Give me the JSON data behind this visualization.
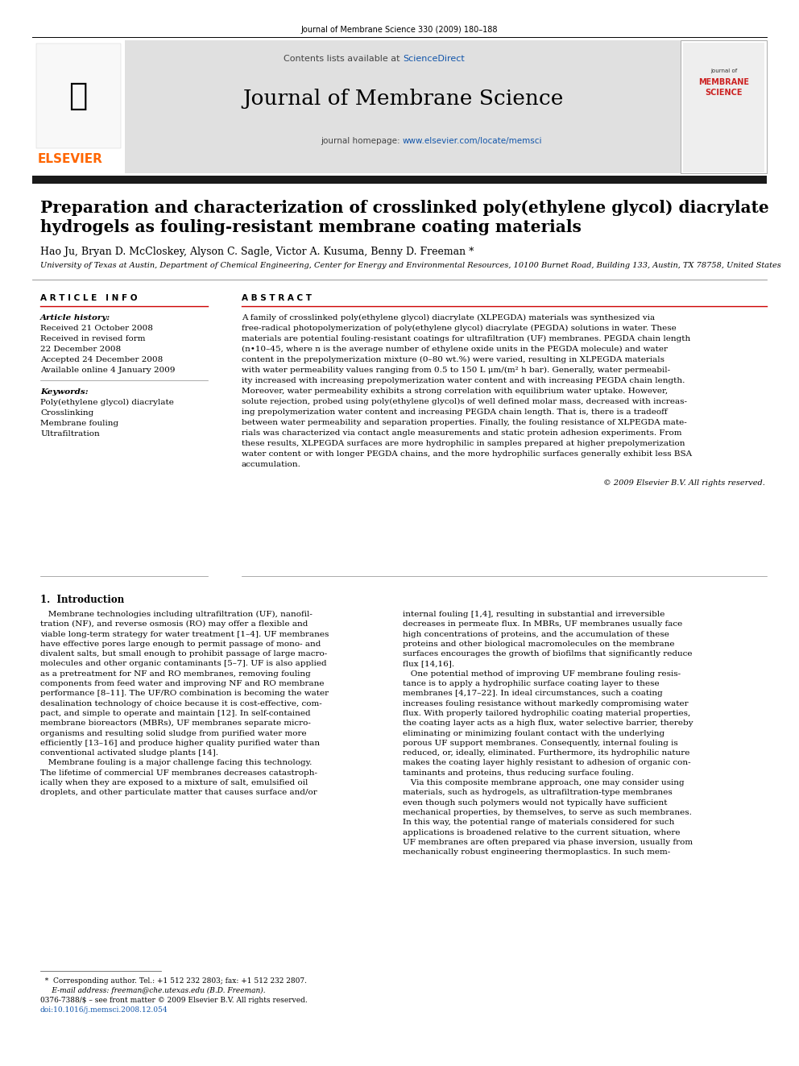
{
  "journal_header": "Journal of Membrane Science 330 (2009) 180–188",
  "contents_line": "Contents lists available at ",
  "sciencedirect": "ScienceDirect",
  "journal_name": "Journal of Membrane Science",
  "homepage_prefix": "journal homepage: ",
  "homepage_url": "www.elsevier.com/locate/memsci",
  "title_line1": "Preparation and characterization of crosslinked poly(ethylene glycol) diacrylate",
  "title_line2": "hydrogels as fouling-resistant membrane coating materials",
  "authors": "Hao Ju, Bryan D. McCloskey, Alyson C. Sagle, Victor A. Kusuma, Benny D. Freeman *",
  "affiliation": "University of Texas at Austin, Department of Chemical Engineering, Center for Energy and Environmental Resources, 10100 Burnet Road, Building 133, Austin, TX 78758, United States",
  "article_info_title": "A R T I C L E   I N F O",
  "history_label": "Article history:",
  "received1": "Received 21 October 2008",
  "received2": "Received in revised form",
  "received2b": "22 December 2008",
  "accepted": "Accepted 24 December 2008",
  "available": "Available online 4 January 2009",
  "keywords_label": "Keywords:",
  "kw1": "Poly(ethylene glycol) diacrylate",
  "kw2": "Crosslinking",
  "kw3": "Membrane fouling",
  "kw4": "Ultrafiltration",
  "abstract_title": "A B S T R A C T",
  "abstract_lines": [
    "A family of crosslinked poly(ethylene glycol) diacrylate (XLPEGDA) materials was synthesized via",
    "free-radical photopolymerization of poly(ethylene glycol) diacrylate (PEGDA) solutions in water. These",
    "materials are potential fouling-resistant coatings for ultrafiltration (UF) membranes. PEGDA chain length",
    "(n•10–45, where n is the average number of ethylene oxide units in the PEGDA molecule) and water",
    "content in the prepolymerization mixture (0–80 wt.%) were varied, resulting in XLPEGDA materials",
    "with water permeability values ranging from 0.5 to 150 L μm/(m² h bar). Generally, water permeabil-",
    "ity increased with increasing prepolymerization water content and with increasing PEGDA chain length.",
    "Moreover, water permeability exhibits a strong correlation with equilibrium water uptake. However,",
    "solute rejection, probed using poly(ethylene glycol)s of well defined molar mass, decreased with increas-",
    "ing prepolymerization water content and increasing PEGDA chain length. That is, there is a tradeoff",
    "between water permeability and separation properties. Finally, the fouling resistance of XLPEGDA mate-",
    "rials was characterized via contact angle measurements and static protein adhesion experiments. From",
    "these results, XLPEGDA surfaces are more hydrophilic in samples prepared at higher prepolymerization",
    "water content or with longer PEGDA chains, and the more hydrophilic surfaces generally exhibit less BSA",
    "accumulation."
  ],
  "copyright": "© 2009 Elsevier B.V. All rights reserved.",
  "intro_title": "1.  Introduction",
  "intro1_lines": [
    "   Membrane technologies including ultrafiltration (UF), nanofil-",
    "tration (NF), and reverse osmosis (RO) may offer a flexible and",
    "viable long-term strategy for water treatment [1–4]. UF membranes",
    "have effective pores large enough to permit passage of mono- and",
    "divalent salts, but small enough to prohibit passage of large macro-",
    "molecules and other organic contaminants [5–7]. UF is also applied",
    "as a pretreatment for NF and RO membranes, removing fouling",
    "components from feed water and improving NF and RO membrane",
    "performance [8–11]. The UF/RO combination is becoming the water",
    "desalination technology of choice because it is cost-effective, com-",
    "pact, and simple to operate and maintain [12]. In self-contained",
    "membrane bioreactors (MBRs), UF membranes separate micro-",
    "organisms and resulting solid sludge from purified water more",
    "efficiently [13–16] and produce higher quality purified water than",
    "conventional activated sludge plants [14].",
    "   Membrane fouling is a major challenge facing this technology.",
    "The lifetime of commercial UF membranes decreases catastroph-",
    "ically when they are exposed to a mixture of salt, emulsified oil",
    "droplets, and other particulate matter that causes surface and/or"
  ],
  "intro2_lines": [
    "internal fouling [1,4], resulting in substantial and irreversible",
    "decreases in permeate flux. In MBRs, UF membranes usually face",
    "high concentrations of proteins, and the accumulation of these",
    "proteins and other biological macromolecules on the membrane",
    "surfaces encourages the growth of biofilms that significantly reduce",
    "flux [14,16].",
    "   One potential method of improving UF membrane fouling resis-",
    "tance is to apply a hydrophilic surface coating layer to these",
    "membranes [4,17–22]. In ideal circumstances, such a coating",
    "increases fouling resistance without markedly compromising water",
    "flux. With properly tailored hydrophilic coating material properties,",
    "the coating layer acts as a high flux, water selective barrier, thereby",
    "eliminating or minimizing foulant contact with the underlying",
    "porous UF support membranes. Consequently, internal fouling is",
    "reduced, or, ideally, eliminated. Furthermore, its hydrophilic nature",
    "makes the coating layer highly resistant to adhesion of organic con-",
    "taminants and proteins, thus reducing surface fouling.",
    "   Via this composite membrane approach, one may consider using",
    "materials, such as hydrogels, as ultrafiltration-type membranes",
    "even though such polymers would not typically have sufficient",
    "mechanical properties, by themselves, to serve as such membranes.",
    "In this way, the potential range of materials considered for such",
    "applications is broadened relative to the current situation, where",
    "UF membranes are often prepared via phase inversion, usually from",
    "mechanically robust engineering thermoplastics. In such mem-"
  ],
  "footnote1": "  *  Corresponding author. Tel.: +1 512 232 2803; fax: +1 512 232 2807.",
  "footnote2": "     E-mail address: freeman@che.utexas.edu (B.D. Freeman).",
  "footnote3": "0376-7388/$ – see front matter © 2009 Elsevier B.V. All rights reserved.",
  "footnote4": "doi:10.1016/j.memsci.2008.12.054",
  "elsevier_color": "#FF6600",
  "blue": "#1155aa",
  "red_journal": "#cc2222",
  "black": "#000000",
  "bg_color": "#ffffff",
  "header_bg": "#e0e0e0"
}
